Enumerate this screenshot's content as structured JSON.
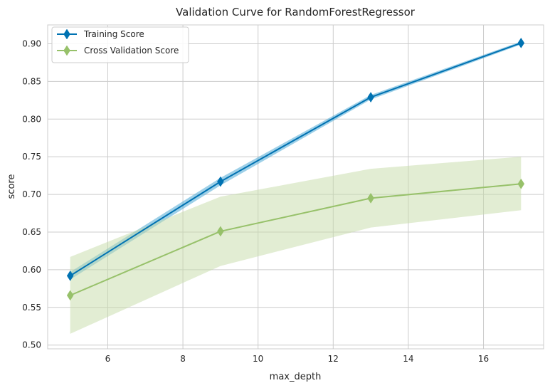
{
  "chart_data": {
    "type": "line",
    "title": "Validation Curve for RandomForestRegressor",
    "xlabel": "max_depth",
    "ylabel": "score",
    "xlim": [
      4.4,
      17.6
    ],
    "ylim": [
      0.495,
      0.925
    ],
    "xticks": [
      6,
      8,
      10,
      12,
      14,
      16
    ],
    "yticks": [
      0.5,
      0.55,
      0.6,
      0.65,
      0.7,
      0.75,
      0.8,
      0.85,
      0.9
    ],
    "grid": true,
    "legend_position": "upper-left",
    "x": [
      5,
      9,
      13,
      17
    ],
    "series": [
      {
        "name": "Training Score",
        "color": "#0072b2",
        "band_color": "#4fa9d6",
        "values": [
          0.592,
          0.717,
          0.829,
          0.901
        ],
        "band_low": [
          0.587,
          0.712,
          0.826,
          0.899
        ],
        "band_high": [
          0.597,
          0.722,
          0.832,
          0.903
        ]
      },
      {
        "name": "Cross Validation Score",
        "color": "#97c16a",
        "band_color": "#c6dca8",
        "values": [
          0.566,
          0.651,
          0.695,
          0.714
        ],
        "band_low": [
          0.515,
          0.605,
          0.656,
          0.679
        ],
        "band_high": [
          0.617,
          0.697,
          0.734,
          0.75
        ]
      }
    ]
  }
}
